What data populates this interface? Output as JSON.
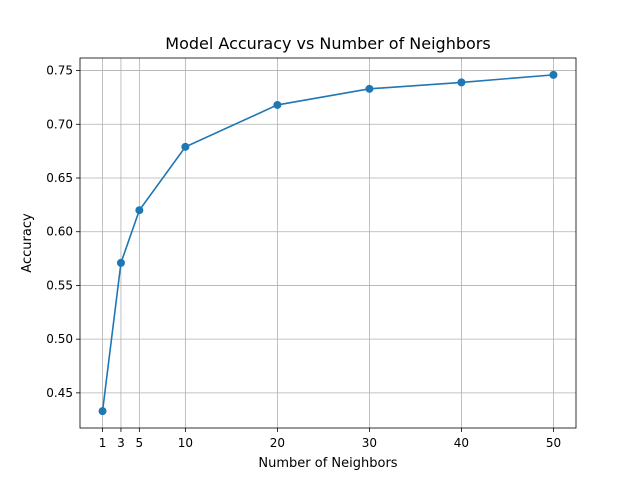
{
  "chart_data": {
    "type": "line",
    "title": "Model Accuracy vs Number of Neighbors",
    "xlabel": "Number of Neighbors",
    "ylabel": "Accuracy",
    "x": [
      1,
      3,
      5,
      10,
      20,
      30,
      40,
      50
    ],
    "series": [
      {
        "values": [
          0.433,
          0.571,
          0.62,
          0.679,
          0.718,
          0.733,
          0.739,
          0.746
        ],
        "color": "#1f77b4"
      }
    ],
    "xticks": [
      1,
      3,
      5,
      10,
      20,
      30,
      40,
      50
    ],
    "xtick_labels": [
      "1",
      "3",
      "5",
      "10",
      "20",
      "30",
      "40",
      "50"
    ],
    "yticks": [
      0.45,
      0.5,
      0.55,
      0.6,
      0.65,
      0.7,
      0.75
    ],
    "ytick_labels": [
      "0.45",
      "0.50",
      "0.55",
      "0.60",
      "0.65",
      "0.70",
      "0.75"
    ],
    "xlim": [
      -1.45,
      52.45
    ],
    "ylim": [
      0.4173,
      0.7617
    ],
    "grid": true,
    "legend": "none"
  }
}
